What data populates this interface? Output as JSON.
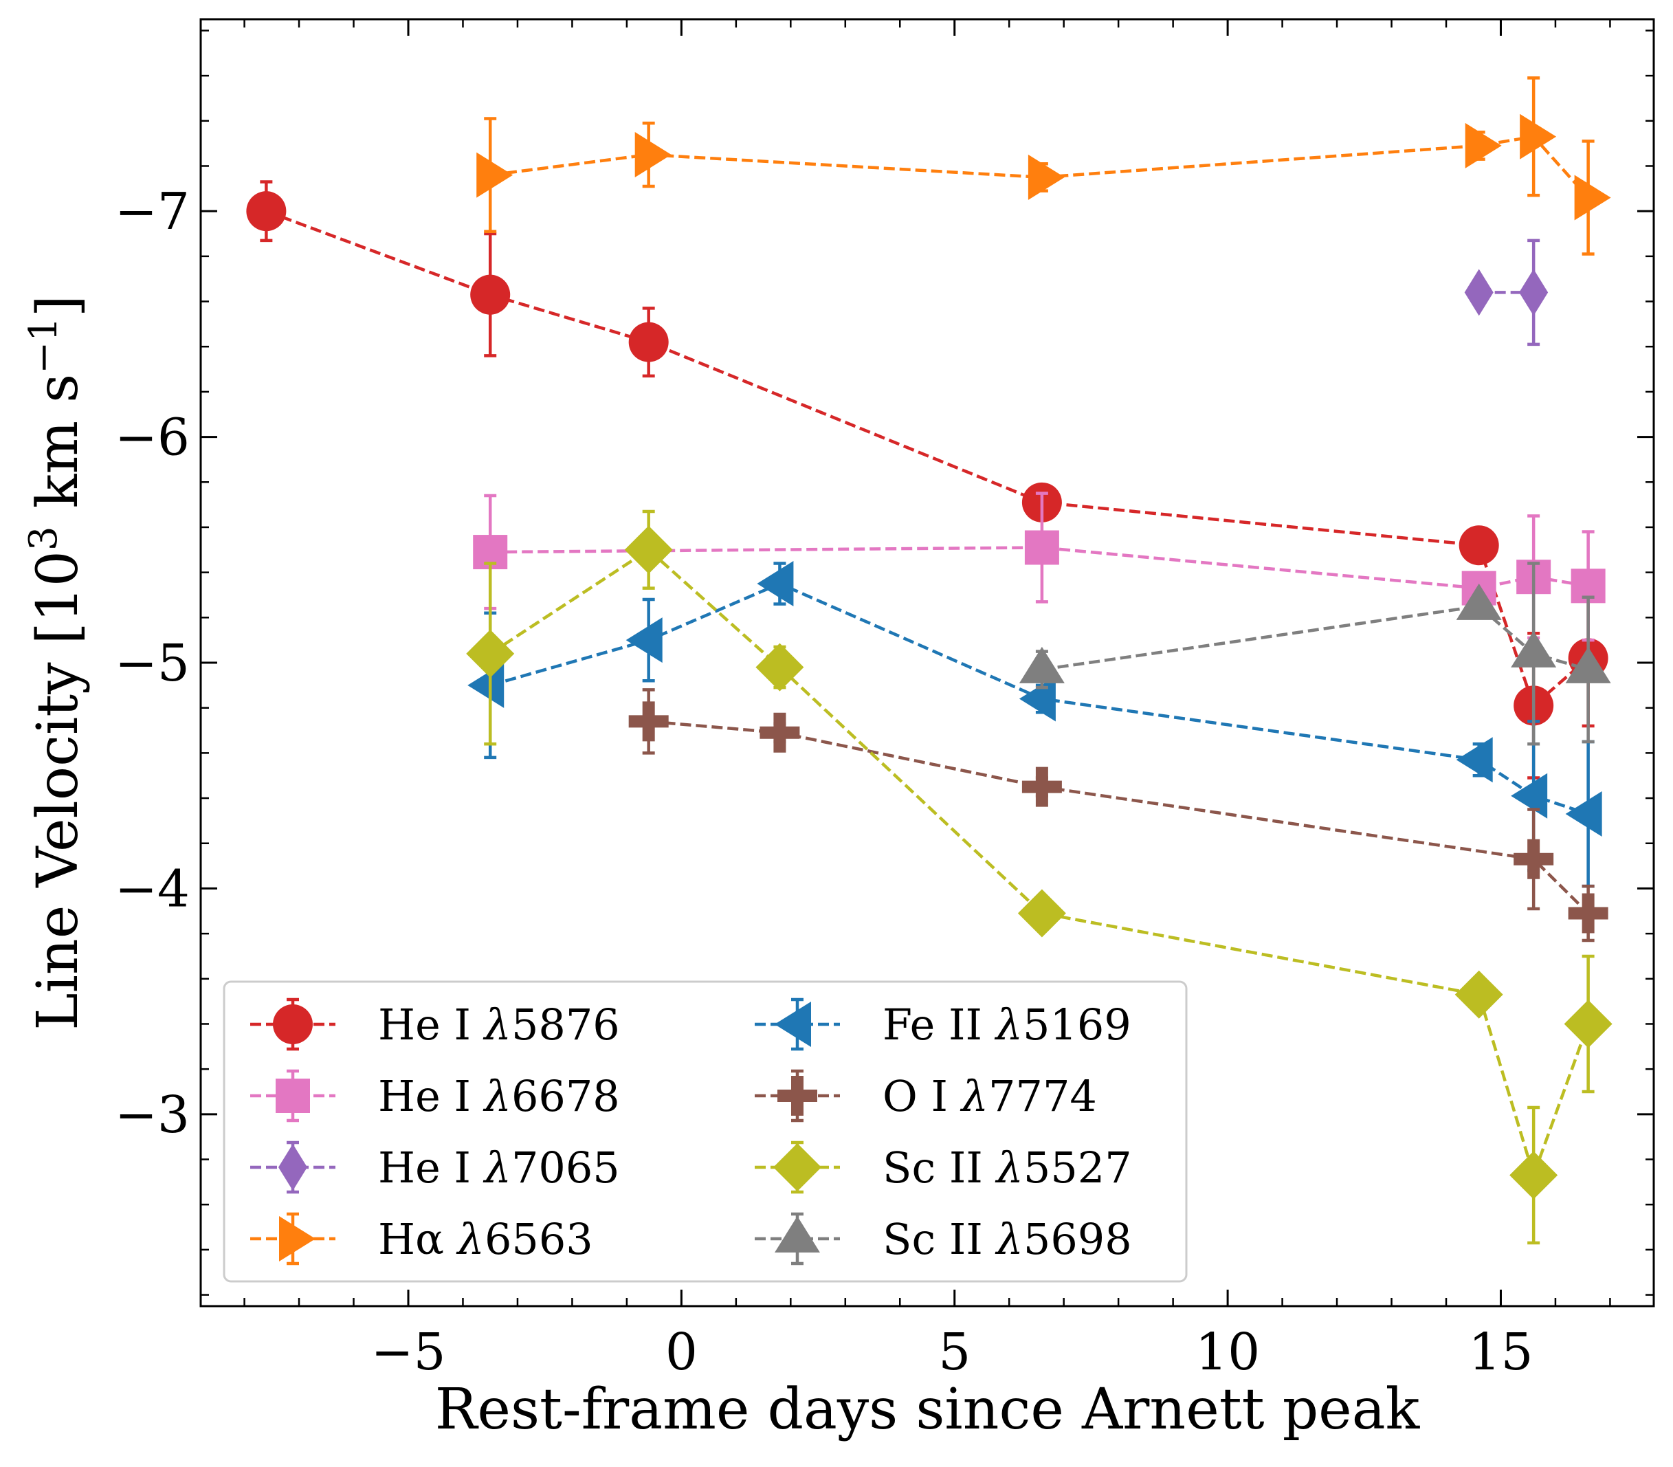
{
  "chart_data": {
    "type": "line",
    "title": "",
    "xlabel": "Rest-frame days since Arnett peak",
    "ylabel_main": "Line Velocity [10",
    "ylabel_sup1": "3",
    "ylabel_mid": " km s",
    "ylabel_sup2": "−1",
    "ylabel_end": "]",
    "xlim": [
      -8.8,
      17.8
    ],
    "ylim": [
      -7.85,
      -2.15
    ],
    "y_inverted": true,
    "xticks": [
      -5,
      0,
      5,
      10,
      15
    ],
    "xtick_labels": [
      "−5",
      "0",
      "5",
      "10",
      "15"
    ],
    "yticks": [
      -7,
      -6,
      -5,
      -4,
      -3
    ],
    "ytick_labels": [
      "−7",
      "−6",
      "−5",
      "−4",
      "−3"
    ],
    "legend_location": "lower-left",
    "series": [
      {
        "name": "He I",
        "wavelength": "5876",
        "color": "#d62728",
        "marker": "circle",
        "x": [
          -7.6,
          -3.5,
          -0.6,
          6.6,
          14.6,
          15.6,
          16.6
        ],
        "y": [
          -7.0,
          -6.63,
          -6.42,
          -5.71,
          -5.52,
          -4.81,
          -5.02
        ],
        "err": [
          0.13,
          0.27,
          0.15,
          0.06,
          0.06,
          0.32,
          0.3
        ]
      },
      {
        "name": "He I",
        "wavelength": "6678",
        "color": "#e377c2",
        "marker": "square",
        "x": [
          -3.5,
          6.6,
          14.6,
          15.6,
          16.6
        ],
        "y": [
          -5.49,
          -5.51,
          -5.33,
          -5.38,
          -5.34
        ],
        "err": [
          0.25,
          0.24,
          0.06,
          0.27,
          0.24
        ]
      },
      {
        "name": "He I",
        "wavelength": "7065",
        "color": "#9467bd",
        "marker": "thin_diamond",
        "x": [
          14.6,
          15.6
        ],
        "y": [
          -6.64,
          -6.64
        ],
        "err": [
          0.0,
          0.23
        ]
      },
      {
        "name": "Hα",
        "wavelength": "6563",
        "color": "#ff7f0e",
        "marker": "triangle-right",
        "x": [
          -3.5,
          -0.6,
          6.6,
          14.6,
          15.6,
          16.6
        ],
        "y": [
          -7.16,
          -7.25,
          -7.15,
          -7.29,
          -7.33,
          -7.06
        ],
        "err": [
          0.25,
          0.14,
          0.06,
          0.06,
          0.26,
          0.25
        ]
      },
      {
        "name": "Fe II",
        "wavelength": "5169",
        "color": "#1f77b4",
        "marker": "triangle-left",
        "x": [
          -3.5,
          -0.6,
          1.8,
          6.6,
          14.6,
          15.6,
          16.6
        ],
        "y": [
          -4.9,
          -5.1,
          -5.35,
          -4.84,
          -4.57,
          -4.41,
          -4.33
        ],
        "err": [
          0.32,
          0.18,
          0.09,
          0.06,
          0.07,
          0.33,
          0.32
        ]
      },
      {
        "name": "O I",
        "wavelength": "7774",
        "color": "#8c564b",
        "marker": "plus",
        "x": [
          -0.6,
          1.8,
          6.6,
          15.6,
          16.6
        ],
        "y": [
          -4.74,
          -4.69,
          -4.45,
          -4.13,
          -3.89
        ],
        "err": [
          0.14,
          0.04,
          0.04,
          0.22,
          0.12
        ]
      },
      {
        "name": "Sc II",
        "wavelength": "5527",
        "color": "#bcbd22",
        "marker": "diamond",
        "x": [
          -3.5,
          -0.6,
          1.8,
          6.6,
          14.6,
          15.6,
          16.6
        ],
        "y": [
          -5.04,
          -5.5,
          -4.98,
          -3.89,
          -3.53,
          -2.73,
          -3.4
        ],
        "err": [
          0.4,
          0.17,
          0.09,
          0.0,
          0.0,
          0.3,
          0.3
        ]
      },
      {
        "name": "Sc II",
        "wavelength": "5698",
        "color": "#7f7f7f",
        "marker": "triangle-up",
        "x": [
          6.6,
          14.6,
          15.6,
          16.6
        ],
        "y": [
          -4.97,
          -5.25,
          -5.04,
          -4.97
        ],
        "err": [
          0.08,
          0.05,
          0.4,
          0.32
        ]
      }
    ]
  }
}
